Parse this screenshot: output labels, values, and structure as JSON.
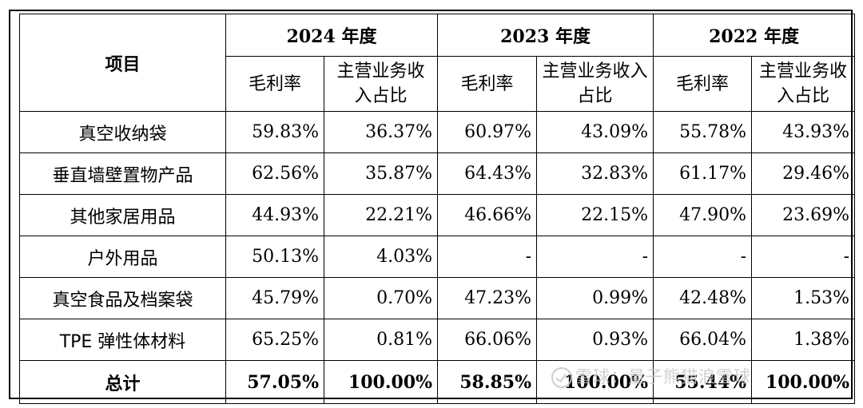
{
  "header": {
    "item_label": "项目",
    "years": [
      "2024 年度",
      "2023 年度",
      "2022 年度"
    ],
    "sub_gross_margin": "毛利率",
    "sub_revenue_share": "主营业务收入占比"
  },
  "rows": [
    {
      "item": "真空收纳袋",
      "v": [
        "59.83%",
        "36.37%",
        "60.97%",
        "43.09%",
        "55.78%",
        "43.93%"
      ]
    },
    {
      "item": "垂直墙壁置物产品",
      "v": [
        "62.56%",
        "35.87%",
        "64.43%",
        "32.83%",
        "61.17%",
        "29.46%"
      ]
    },
    {
      "item": "其他家居用品",
      "v": [
        "44.93%",
        "22.21%",
        "46.66%",
        "22.15%",
        "47.90%",
        "23.69%"
      ]
    },
    {
      "item": "户外用品",
      "v": [
        "50.13%",
        "4.03%",
        "-",
        "-",
        "-",
        "-"
      ]
    },
    {
      "item": "真空食品及档案袋",
      "v": [
        "45.79%",
        "0.70%",
        "47.23%",
        "0.99%",
        "42.48%",
        "1.53%"
      ]
    },
    {
      "item": "TPE 弹性体材料",
      "v": [
        "65.25%",
        "0.81%",
        "66.06%",
        "0.93%",
        "66.04%",
        "1.38%"
      ]
    }
  ],
  "total": {
    "item": "总计",
    "v": [
      "57.05%",
      "100.00%",
      "58.85%",
      "100.00%",
      "55.44%",
      "100.00%"
    ]
  },
  "watermark": {
    "text": "雪球：量子熊猫浪雪球",
    "icon": "snowball-logo-icon"
  }
}
